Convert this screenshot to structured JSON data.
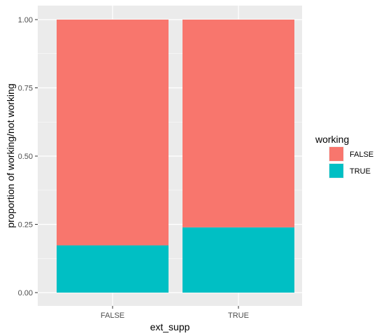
{
  "chart_data": {
    "type": "bar",
    "stacked": true,
    "categories": [
      "FALSE",
      "TRUE"
    ],
    "series": [
      {
        "name": "FALSE",
        "values": [
          0.827,
          0.761
        ],
        "color": "#F8766D"
      },
      {
        "name": "TRUE",
        "values": [
          0.173,
          0.239
        ],
        "color": "#00BFC4"
      }
    ],
    "xlabel": "ext_supp",
    "ylabel": "proportion of working/not working",
    "ylim": [
      0,
      1
    ],
    "yticks": [
      0,
      0.25,
      0.5,
      0.75,
      1
    ],
    "ytick_labels": [
      "0.00",
      "0.25",
      "0.50",
      "0.75",
      "1.00"
    ],
    "grid": true,
    "panel_background": "#EBEBEB",
    "legend": {
      "title": "working",
      "position": "right",
      "entries": [
        {
          "label": "FALSE",
          "color": "#F8766D"
        },
        {
          "label": "TRUE",
          "color": "#00BFC4"
        }
      ]
    }
  }
}
